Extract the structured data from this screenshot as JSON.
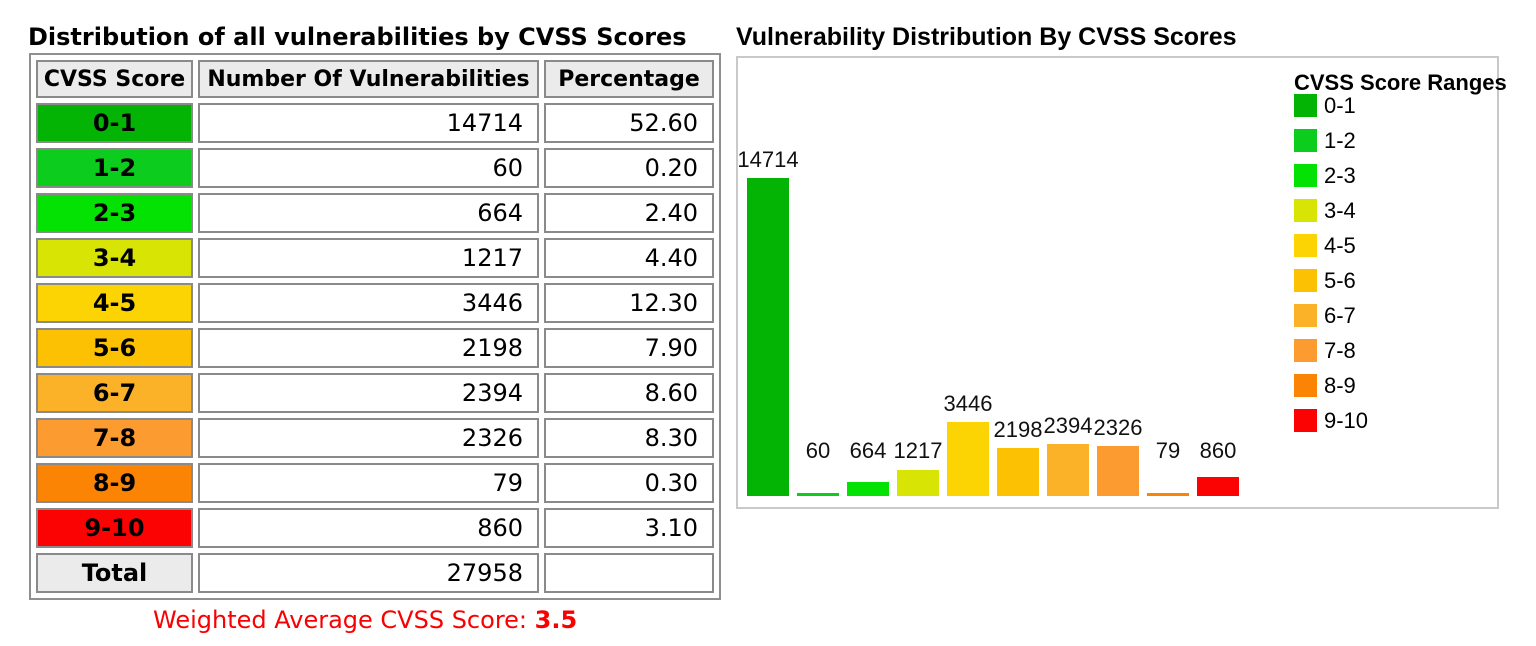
{
  "left_panel": {
    "title": "Distribution of all vulnerabilities by CVSS Scores",
    "table": {
      "headers": [
        "CVSS Score",
        "Number Of Vulnerabilities",
        "Percentage"
      ],
      "rows": [
        {
          "range": "0-1",
          "count": "14714",
          "percentage": "52.60",
          "color": "#04b404"
        },
        {
          "range": "1-2",
          "count": "60",
          "percentage": "0.20",
          "color": "#0ccc1e"
        },
        {
          "range": "2-3",
          "count": "664",
          "percentage": "2.40",
          "color": "#04e204"
        },
        {
          "range": "3-4",
          "count": "1217",
          "percentage": "4.40",
          "color": "#d8e404"
        },
        {
          "range": "4-5",
          "count": "3446",
          "percentage": "12.30",
          "color": "#fcd303"
        },
        {
          "range": "5-6",
          "count": "2198",
          "percentage": "7.90",
          "color": "#fcc102"
        },
        {
          "range": "6-7",
          "count": "2394",
          "percentage": "8.60",
          "color": "#fcb228"
        },
        {
          "range": "7-8",
          "count": "2326",
          "percentage": "8.30",
          "color": "#fc9b30"
        },
        {
          "range": "8-9",
          "count": "79",
          "percentage": "0.30",
          "color": "#fc8405"
        },
        {
          "range": "9-10",
          "count": "860",
          "percentage": "3.10",
          "color": "#fc0303"
        }
      ],
      "total_label": "Total",
      "total_count": "27958",
      "total_percentage": ""
    },
    "weighted_average_label": "Weighted Average CVSS Score: ",
    "weighted_average_value": "3.5",
    "weighted_average_color": "#fa0000"
  },
  "chart_panel": {
    "title": "Vulnerability Distribution By CVSS Scores",
    "legend_title": "CVSS Score Ranges"
  },
  "chart_data": {
    "type": "bar",
    "title": "Vulnerability Distribution By CVSS Scores",
    "categories": [
      "0-1",
      "1-2",
      "2-3",
      "3-4",
      "4-5",
      "5-6",
      "6-7",
      "7-8",
      "8-9",
      "9-10"
    ],
    "values": [
      14714,
      60,
      664,
      1217,
      3446,
      2198,
      2394,
      2326,
      79,
      860
    ],
    "colors": [
      "#04b404",
      "#0ccc1e",
      "#04e204",
      "#d8e404",
      "#fcd303",
      "#fcc102",
      "#fcb228",
      "#fc9b30",
      "#fc8405",
      "#fc0303"
    ],
    "bar_value_labels": true,
    "legend_title": "CVSS Score Ranges",
    "legend_position": "right",
    "ylim": [
      0,
      14714
    ],
    "grid": false,
    "axes_shown": false
  }
}
